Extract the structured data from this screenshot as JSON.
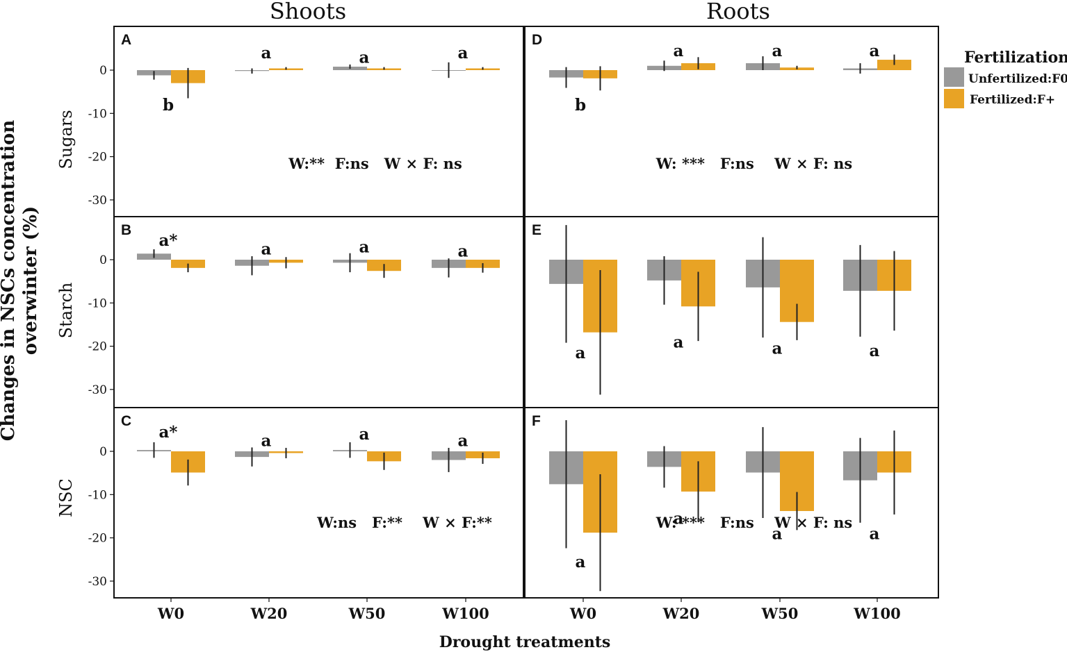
{
  "chart_data": {
    "type": "bar",
    "title": "",
    "columns": [
      "Shoots",
      "Roots"
    ],
    "rows": [
      "Sugars",
      "Starch",
      "NSC"
    ],
    "categories": [
      "W0",
      "W20",
      "W50",
      "W100"
    ],
    "xlabel": "Drought treatments",
    "ylabel_line1": "Changes in NSCs concentration",
    "ylabel_line2": "overwinter (%)",
    "ylim": [
      -35,
      10
    ],
    "yticks": [
      0,
      -10,
      -20,
      -30
    ],
    "ytick_labels": [
      "0",
      "-10",
      "-20",
      "-30"
    ],
    "legend": {
      "title": "Fertilization",
      "position": "right",
      "items": [
        {
          "name": "Unfertilized:F0",
          "color": "#999999"
        },
        {
          "name": "Fertilized:F+",
          "color": "#E8A325"
        }
      ]
    },
    "panels": [
      {
        "letter": "A",
        "row": "Sugars",
        "column": "Shoots",
        "series": [
          {
            "name": "Unfertilized:F0",
            "values": [
              -1.2,
              -0.2,
              0.8,
              0.0
            ],
            "errors": [
              1.0,
              0.6,
              0.5,
              1.8
            ]
          },
          {
            "name": "Fertilized:F+",
            "values": [
              -3.0,
              0.4,
              0.4,
              0.4
            ],
            "errors": [
              3.5,
              0.3,
              0.3,
              0.3
            ]
          }
        ],
        "labels": [
          {
            "text": "b",
            "category": "W0",
            "value": -8.0
          },
          {
            "text": "a",
            "category": "W20",
            "value": 4.0
          },
          {
            "text": "a",
            "category": "W50",
            "value": 3.0
          },
          {
            "text": "a",
            "category": "W100",
            "value": 4.0
          }
        ],
        "stats": "W:**  F:ns   W × F: ns"
      },
      {
        "letter": "B",
        "row": "Starch",
        "column": "Shoots",
        "series": [
          {
            "name": "Unfertilized:F0",
            "values": [
              1.4,
              -1.4,
              -0.7,
              -1.9
            ],
            "errors": [
              1.0,
              2.2,
              2.2,
              2.2
            ]
          },
          {
            "name": "Fertilized:F+",
            "values": [
              -1.9,
              -0.7,
              -2.6,
              -1.9
            ],
            "errors": [
              1.0,
              1.3,
              1.6,
              1.1
            ]
          }
        ],
        "labels": [
          {
            "text": "a*",
            "category": "W0",
            "value": 4.5
          },
          {
            "text": "a",
            "category": "W20",
            "value": 2.5
          },
          {
            "text": "a",
            "category": "W50",
            "value": 3.0
          },
          {
            "text": "a",
            "category": "W100",
            "value": 2.0
          }
        ],
        "stats": ""
      },
      {
        "letter": "C",
        "row": "NSC",
        "column": "Shoots",
        "series": [
          {
            "name": "Unfertilized:F0",
            "values": [
              0.3,
              -1.3,
              0.3,
              -2.0
            ],
            "errors": [
              1.8,
              2.2,
              1.8,
              2.8
            ]
          },
          {
            "name": "Fertilized:F+",
            "values": [
              -4.9,
              -0.4,
              -2.3,
              -1.6
            ],
            "errors": [
              3.0,
              1.2,
              2.0,
              1.3
            ]
          }
        ],
        "labels": [
          {
            "text": "a*",
            "category": "W0",
            "value": 4.5
          },
          {
            "text": "a",
            "category": "W20",
            "value": 2.5
          },
          {
            "text": "a",
            "category": "W50",
            "value": 4.0
          },
          {
            "text": "a",
            "category": "W100",
            "value": 2.5
          }
        ],
        "stats": "W:ns   F:**    W × F:**"
      },
      {
        "letter": "D",
        "row": "Sugars",
        "column": "Roots",
        "series": [
          {
            "name": "Unfertilized:F0",
            "values": [
              -1.7,
              1.0,
              1.6,
              0.4
            ],
            "errors": [
              2.4,
              1.2,
              1.6,
              1.2
            ]
          },
          {
            "name": "Fertilized:F+",
            "values": [
              -1.9,
              1.6,
              0.6,
              2.4
            ],
            "errors": [
              2.8,
              1.4,
              0.4,
              1.2
            ]
          }
        ],
        "labels": [
          {
            "text": "b",
            "category": "W0",
            "value": -8.0
          },
          {
            "text": "a",
            "category": "W20",
            "value": 4.5
          },
          {
            "text": "a",
            "category": "W50",
            "value": 4.5
          },
          {
            "text": "a",
            "category": "W100",
            "value": 4.5
          }
        ],
        "stats": "W: ***   F:ns    W × F: ns"
      },
      {
        "letter": "E",
        "row": "Starch",
        "column": "Roots",
        "series": [
          {
            "name": "Unfertilized:F0",
            "values": [
              -5.6,
              -4.8,
              -6.4,
              -7.2
            ],
            "errors": [
              13.6,
              5.6,
              11.6,
              10.6
            ]
          },
          {
            "name": "Fertilized:F+",
            "values": [
              -16.8,
              -10.8,
              -14.4,
              -7.2
            ],
            "errors": [
              14.4,
              8.0,
              4.2,
              9.2
            ]
          }
        ],
        "labels": [
          {
            "text": "a",
            "category": "W0",
            "value": -21.5
          },
          {
            "text": "a",
            "category": "W20",
            "value": -19.0
          },
          {
            "text": "a",
            "category": "W50",
            "value": -20.5
          },
          {
            "text": "a",
            "category": "W100",
            "value": -21.0
          }
        ],
        "stats": ""
      },
      {
        "letter": "F",
        "row": "NSC",
        "column": "Roots",
        "series": [
          {
            "name": "Unfertilized:F0",
            "values": [
              -7.6,
              -3.6,
              -4.9,
              -6.7
            ],
            "errors": [
              14.8,
              4.8,
              10.5,
              9.8
            ]
          },
          {
            "name": "Fertilized:F+",
            "values": [
              -18.8,
              -9.3,
              -13.8,
              -4.9
            ],
            "errors": [
              13.5,
              7.0,
              4.4,
              9.7
            ]
          }
        ],
        "labels": [
          {
            "text": "a",
            "category": "W0",
            "value": -25.5
          },
          {
            "text": "a",
            "category": "W20",
            "value": -15.5
          },
          {
            "text": "a",
            "category": "W50",
            "value": -19.0
          },
          {
            "text": "a",
            "category": "W100",
            "value": -19.0
          }
        ],
        "stats": "W: ***   F:ns    W × F: ns"
      }
    ]
  }
}
